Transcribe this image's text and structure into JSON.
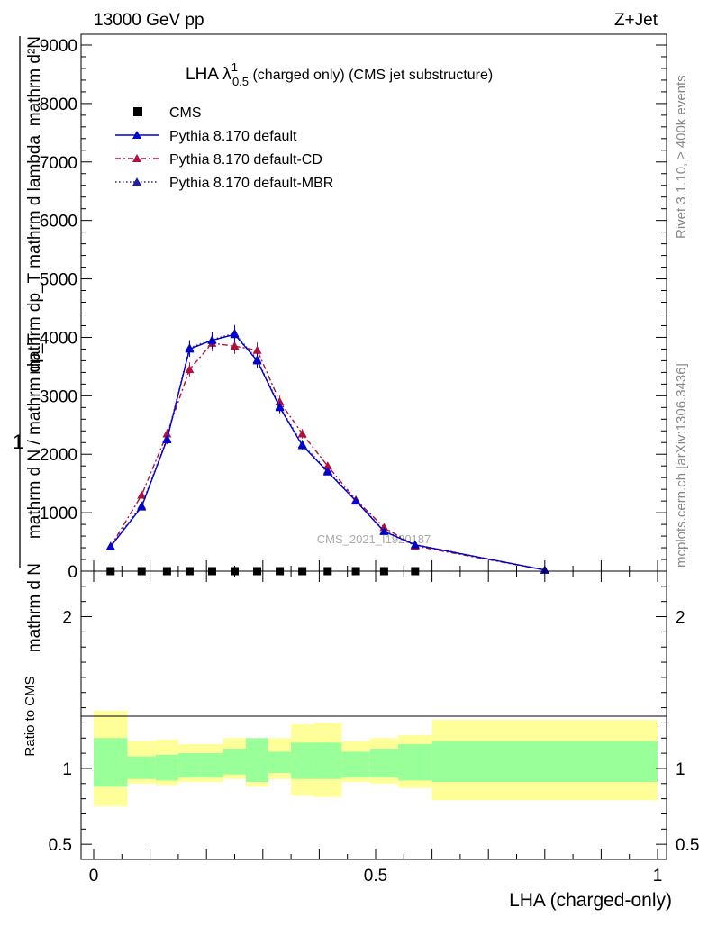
{
  "header": {
    "left": "13000 GeV pp",
    "right": "Z+Jet"
  },
  "side": {
    "rivet": "Rivet 3.1.10, ≥ 400k events",
    "mcplots": "mcplots.cern.ch [arXiv:1306.3436]"
  },
  "title": {
    "main": "LHA λ",
    "sup": "1",
    "sub": "0.5",
    "rest": " (charged only) (CMS jet substructure)"
  },
  "ylabel": {
    "numerator_one": "1",
    "rotated_top": "mathrm d²N",
    "rotated_top2": "mathrm dp_T mathrm d lambda",
    "rotated_mid": "mathrm d N / mathrm dp_T",
    "rotated_bottom": "mathrm d N"
  },
  "watermark": "CMS_2021_I1920187",
  "ratio_ylabel": "Ratio to CMS",
  "xlabel": "LHA (charged-only)",
  "legend": [
    {
      "name": "CMS",
      "color": "#000000",
      "style": "square"
    },
    {
      "name": "Pythia 8.170 default",
      "color": "#0000cc",
      "style": "solid"
    },
    {
      "name": "Pythia 8.170 default-CD",
      "color": "#b0103c",
      "style": "dashdot"
    },
    {
      "name": "Pythia 8.170 default-MBR",
      "color": "#2020a0",
      "style": "dotted"
    }
  ],
  "chart_data": {
    "type": "line",
    "xlim": [
      0,
      1
    ],
    "ylim": [
      0,
      9000
    ],
    "xticks": [
      "0",
      "0.5",
      "1"
    ],
    "yticks": [
      "0",
      "1000",
      "2000",
      "3000",
      "4000",
      "5000",
      "6000",
      "7000",
      "8000",
      "9000"
    ],
    "ratio_ylim": [
      0.4,
      2.3
    ],
    "ratio_yticks": [
      "0.5",
      "1",
      "2"
    ],
    "bin_edges": [
      0.0,
      0.06,
      0.11,
      0.15,
      0.19,
      0.23,
      0.27,
      0.31,
      0.35,
      0.39,
      0.44,
      0.49,
      0.54,
      0.6,
      1.0
    ],
    "x": [
      0.03,
      0.085,
      0.13,
      0.17,
      0.21,
      0.25,
      0.29,
      0.33,
      0.37,
      0.415,
      0.465,
      0.515,
      0.57,
      0.8
    ],
    "cms_values": [
      0,
      0,
      0,
      0,
      0,
      0,
      0,
      0,
      0,
      0,
      0,
      0,
      0,
      0
    ],
    "series": [
      {
        "name": "Pythia 8.170 default",
        "values": [
          420,
          1100,
          2250,
          3800,
          3950,
          4050,
          3600,
          2800,
          2150,
          1700,
          1200,
          680,
          450,
          20
        ]
      },
      {
        "name": "Pythia 8.170 default-CD",
        "values": [
          420,
          1300,
          2350,
          3450,
          3900,
          3850,
          3780,
          2900,
          2350,
          1800,
          1220,
          750,
          430,
          20
        ]
      },
      {
        "name": "Pythia 8.170 default-MBR",
        "values": [
          430,
          1120,
          2270,
          3820,
          3960,
          4070,
          3620,
          2820,
          2170,
          1720,
          1210,
          690,
          455,
          20
        ]
      }
    ],
    "ratio_bands": {
      "green_hi": [
        1.2,
        1.08,
        1.09,
        1.1,
        1.1,
        1.13,
        1.2,
        1.11,
        1.17,
        1.17,
        1.11,
        1.13,
        1.16,
        1.18
      ],
      "green_lo": [
        0.88,
        0.93,
        0.92,
        0.94,
        0.94,
        0.96,
        0.91,
        0.97,
        0.93,
        0.93,
        0.94,
        0.94,
        0.92,
        0.91
      ],
      "yellow_hi": [
        1.38,
        1.18,
        1.19,
        1.16,
        1.16,
        1.2,
        1.15,
        1.2,
        1.29,
        1.3,
        1.18,
        1.2,
        1.22,
        1.32
      ],
      "yellow_lo": [
        0.75,
        0.9,
        0.89,
        0.91,
        0.91,
        0.93,
        0.88,
        0.93,
        0.82,
        0.81,
        0.91,
        0.9,
        0.87,
        0.79
      ]
    },
    "colors": {
      "green": "#99ff99",
      "yellow": "#ffff99"
    }
  }
}
